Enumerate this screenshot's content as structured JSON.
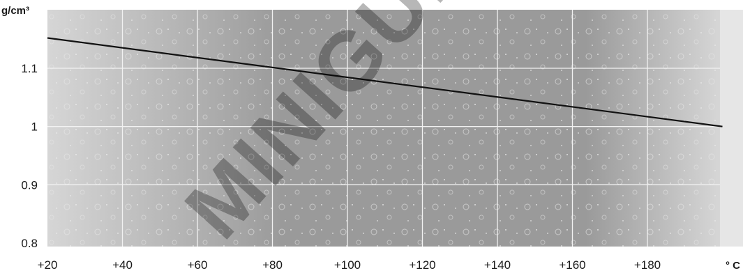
{
  "chart_data": {
    "type": "line",
    "y_unit": "g/cm³",
    "x_unit": "° C",
    "x_tick_labels": [
      "+20",
      "+40",
      "+60",
      "+80",
      "+100",
      "+120",
      "+140",
      "+160",
      "+180"
    ],
    "x_ticks": [
      20,
      40,
      60,
      80,
      100,
      120,
      140,
      160,
      180
    ],
    "y_tick_labels": [
      "0.8",
      "0.9",
      "1",
      "1.1"
    ],
    "y_ticks": [
      0.8,
      0.9,
      1.0,
      1.1
    ],
    "xlim": [
      20,
      200
    ],
    "ylim": [
      0.8,
      1.2
    ],
    "grid": true,
    "series": [
      {
        "x": [
          20,
          200
        ],
        "y": [
          1.152,
          1.0
        ]
      }
    ],
    "colors": {
      "line": "#111111",
      "plot_bg_light": "#d6d6d6",
      "plot_bg_dark": "#9a9a9a",
      "grid": "#f2f2f2",
      "edge_panel": "#e6e6e6"
    },
    "watermark": "MINIGUL"
  }
}
